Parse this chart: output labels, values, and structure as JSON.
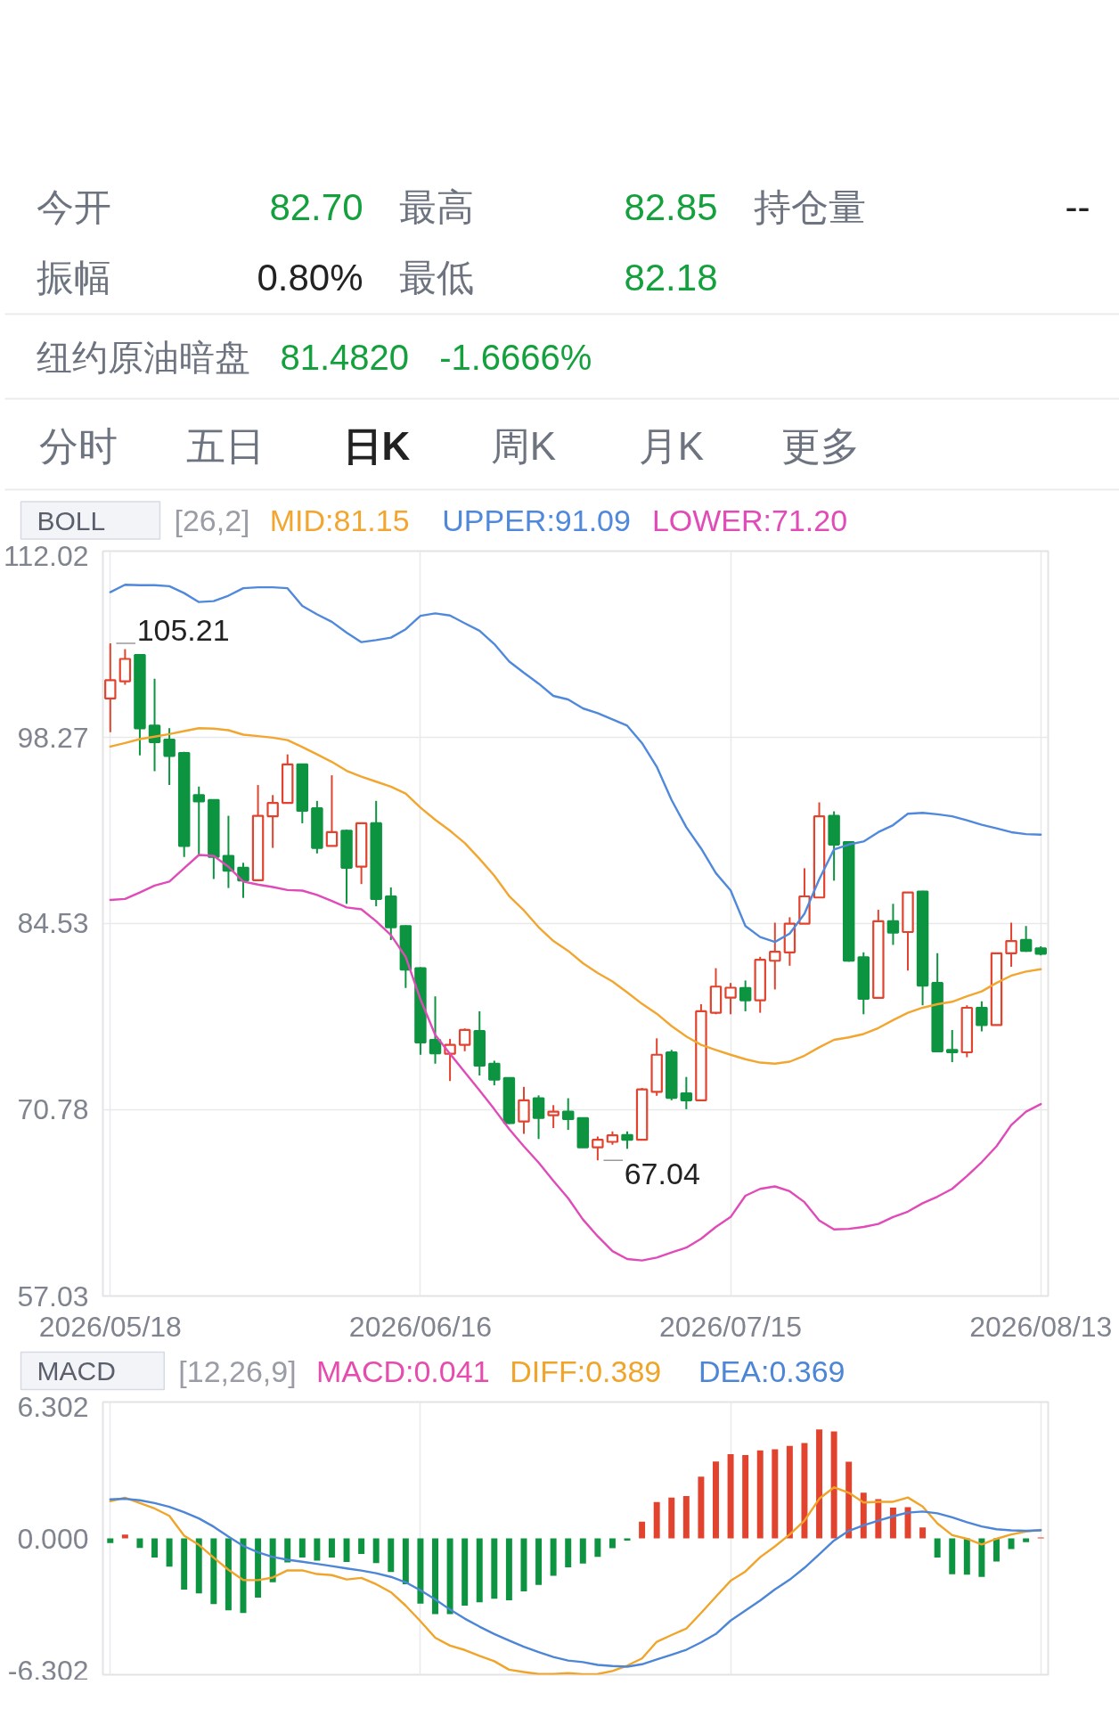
{
  "chart_data": [
    {
      "type": "other",
      "annotations": [
        "今开",
        "82.70",
        "最高",
        "82.85",
        "持仓量",
        "--",
        "振幅",
        "0.80%",
        "最低",
        "82.18",
        "纽约原油暗盘",
        "81.4820",
        "-1.6666%",
        "分时",
        "五日",
        "日K",
        "周K",
        "月K",
        "更多"
      ]
    },
    {
      "type": "candlestick",
      "title": "BOLL",
      "legend_title": "[26,2]",
      "legend": "top left",
      "categories": [
        "2026/05/18",
        null,
        null,
        null,
        null,
        null,
        null,
        null,
        null,
        null,
        null,
        null,
        null,
        null,
        null,
        null,
        null,
        null,
        null,
        null,
        null,
        "2026/06/16",
        null,
        null,
        null,
        null,
        null,
        null,
        null,
        null,
        null,
        null,
        null,
        null,
        null,
        null,
        null,
        null,
        null,
        null,
        null,
        null,
        "2026/07/15",
        null,
        null,
        null,
        null,
        null,
        null,
        null,
        null,
        null,
        null,
        null,
        null,
        null,
        null,
        null,
        null,
        null,
        null,
        null,
        null,
        "2026/08/13"
      ],
      "ohlc": [
        [
          101.14,
          105.21,
          98.65,
          102.49
        ],
        [
          102.41,
          104.79,
          102.16,
          104.06
        ],
        [
          104.35,
          104.42,
          96.94,
          98.94
        ],
        [
          99.13,
          102.6,
          95.77,
          97.92
        ],
        [
          98.1,
          98.94,
          94.75,
          96.9
        ],
        [
          97.12,
          97.2,
          89.45,
          90.25
        ],
        [
          94.01,
          94.64,
          89.63,
          93.54
        ],
        [
          93.65,
          93.7,
          87.81,
          89.45
        ],
        [
          89.52,
          92.48,
          87.15,
          88.43
        ],
        [
          88.65,
          89.01,
          86.42,
          87.7
        ],
        [
          87.73,
          94.75,
          87.73,
          92.48
        ],
        [
          92.44,
          94.01,
          90.11,
          93.43
        ],
        [
          93.43,
          97.01,
          93.43,
          96.28
        ],
        [
          96.28,
          96.3,
          91.93,
          92.85
        ],
        [
          93.03,
          93.58,
          89.7,
          90.11
        ],
        [
          90.25,
          95.47,
          90.25,
          91.27
        ],
        [
          91.38,
          91.46,
          85.98,
          88.65
        ],
        [
          88.72,
          91.93,
          87.44,
          91.93
        ],
        [
          91.93,
          93.58,
          85.8,
          86.34
        ],
        [
          86.53,
          87.19,
          83.31,
          84.26
        ],
        [
          84.34,
          84.4,
          79.77,
          81.12
        ],
        [
          81.23,
          81.3,
          74.84,
          75.75
        ],
        [
          75.93,
          79.15,
          74.18,
          74.95
        ],
        [
          74.91,
          76.01,
          72.9,
          75.57
        ],
        [
          75.57,
          76.78,
          75.1,
          76.67
        ],
        [
          76.59,
          78.05,
          73.31,
          74.04
        ],
        [
          74.18,
          74.4,
          72.58,
          73.01
        ],
        [
          73.12,
          73.15,
          69.73,
          69.8
        ],
        [
          69.91,
          72.47,
          69.0,
          71.48
        ],
        [
          71.63,
          71.84,
          68.63,
          70.17
        ],
        [
          70.38,
          71.12,
          69.43,
          70.64
        ],
        [
          70.64,
          71.63,
          69.29,
          70.09
        ],
        [
          70.17,
          70.2,
          67.98,
          68.01
        ],
        [
          68.01,
          68.81,
          67.04,
          68.56
        ],
        [
          68.41,
          69.18,
          68.19,
          68.89
        ],
        [
          68.92,
          69.18,
          67.9,
          68.56
        ],
        [
          68.56,
          72.39,
          68.56,
          72.28
        ],
        [
          72.1,
          76.05,
          71.81,
          74.84
        ],
        [
          75.02,
          75.2,
          71.48,
          71.66
        ],
        [
          71.99,
          73.2,
          70.82,
          71.48
        ],
        [
          71.48,
          78.57,
          71.48,
          78.05
        ],
        [
          77.94,
          81.23,
          77.83,
          79.87
        ],
        [
          79.06,
          80.14,
          77.83,
          79.79
        ],
        [
          79.77,
          80.32,
          78.05,
          78.86
        ],
        [
          78.86,
          82.07,
          77.94,
          81.85
        ],
        [
          81.78,
          84.59,
          79.66,
          82.44
        ],
        [
          82.4,
          84.99,
          81.41,
          84.52
        ],
        [
          84.52,
          88.61,
          84.52,
          86.53
        ],
        [
          86.45,
          93.47,
          86.45,
          92.44
        ],
        [
          92.48,
          92.81,
          87.69,
          90.36
        ],
        [
          90.54,
          90.6,
          81.71,
          81.78
        ],
        [
          82.04,
          82.4,
          77.83,
          78.97
        ],
        [
          79.04,
          85.54,
          79.04,
          84.7
        ],
        [
          84.7,
          85.98,
          82.95,
          83.86
        ],
        [
          83.9,
          86.82,
          81.05,
          86.82
        ],
        [
          86.89,
          86.95,
          78.49,
          79.95
        ],
        [
          80.14,
          82.33,
          75.1,
          75.1
        ],
        [
          75.2,
          76.67,
          74.29,
          75.02
        ],
        [
          75.02,
          78.49,
          74.66,
          78.31
        ],
        [
          78.31,
          78.78,
          76.56,
          77.03
        ],
        [
          77.03,
          82.33,
          77.03,
          82.33
        ],
        [
          82.33,
          84.59,
          81.34,
          83.24
        ],
        [
          83.31,
          84.34,
          82.44,
          82.51
        ],
        [
          82.7,
          82.85,
          82.18,
          82.3
        ]
      ],
      "colors": [
        "#e2432f",
        "#e2432f",
        "#0c9440",
        "#0c9440",
        "#0c9440",
        "#0c9440",
        "#0c9440",
        "#0c9440",
        "#0c9440",
        "#0c9440",
        "#e2432f",
        "#e2432f",
        "#e2432f",
        "#0c9440",
        "#0c9440",
        "#e2432f",
        "#0c9440",
        "#e2432f",
        "#0c9440",
        "#0c9440",
        "#0c9440",
        "#0c9440",
        "#0c9440",
        "#e2432f",
        "#e2432f",
        "#0c9440",
        "#0c9440",
        "#0c9440",
        "#e2432f",
        "#0c9440",
        "#e2432f",
        "#0c9440",
        "#0c9440",
        "#e2432f",
        "#e2432f",
        "#0c9440",
        "#e2432f",
        "#e2432f",
        "#0c9440",
        "#0c9440",
        "#e2432f",
        "#e2432f",
        "#e2432f",
        "#0c9440",
        "#e2432f",
        "#e2432f",
        "#e2432f",
        "#e2432f",
        "#e2432f",
        "#0c9440",
        "#0c9440",
        "#0c9440",
        "#e2432f",
        "#0c9440",
        "#e2432f",
        "#0c9440",
        "#0c9440",
        "#0c9440",
        "#e2432f",
        "#0c9440",
        "#e2432f",
        "#e2432f",
        "#0c9440",
        "#0c9440"
      ],
      "series": [
        {
          "type": "line",
          "name": "MID:81.15",
          "color": "#f2a630",
          "values": [
            97.59,
            97.85,
            98.14,
            98.32,
            98.51,
            98.73,
            98.95,
            98.91,
            98.8,
            98.47,
            98.36,
            98.25,
            98.07,
            97.56,
            97.01,
            96.46,
            95.8,
            95.37,
            95.0,
            94.63,
            94.12,
            93.08,
            92.19,
            91.38,
            90.47,
            89.3,
            88.06,
            86.56,
            85.5,
            84.26,
            83.24,
            82.51,
            81.6,
            80.87,
            80.25,
            79.44,
            78.6,
            77.87,
            76.96,
            76.19,
            75.57,
            75.2,
            74.84,
            74.51,
            74.26,
            74.18,
            74.33,
            74.77,
            75.39,
            75.94,
            76.12,
            76.37,
            76.81,
            77.4,
            77.94,
            78.31,
            78.57,
            78.75,
            79.15,
            79.52,
            80.14,
            80.68,
            80.98,
            81.15
          ]
        },
        {
          "type": "line",
          "name": "UPPER:91.09",
          "color": "#5089dc",
          "values": [
            108.99,
            109.54,
            109.5,
            109.5,
            109.43,
            108.92,
            108.26,
            108.33,
            108.73,
            109.28,
            109.35,
            109.35,
            109.28,
            107.97,
            107.35,
            106.8,
            106.0,
            105.3,
            105.45,
            105.63,
            106.25,
            107.24,
            107.42,
            107.27,
            106.69,
            106.14,
            105.16,
            103.88,
            103.04,
            102.24,
            101.33,
            101.07,
            100.41,
            100.05,
            99.6,
            99.13,
            97.85,
            96.1,
            93.65,
            91.64,
            90.07,
            88.25,
            86.97,
            84.34,
            83.53,
            83.17,
            83.79,
            85.25,
            87.8,
            90.0,
            90.36,
            90.58,
            91.27,
            91.79,
            92.63,
            92.7,
            92.59,
            92.44,
            92.15,
            91.82,
            91.56,
            91.27,
            91.13,
            91.09
          ]
        },
        {
          "type": "line",
          "name": "LOWER:71.20",
          "color": "#e04bb8",
          "values": [
            86.27,
            86.34,
            86.82,
            87.33,
            87.62,
            88.61,
            89.59,
            89.52,
            88.72,
            87.62,
            87.4,
            87.22,
            87.0,
            86.96,
            86.64,
            86.2,
            85.72,
            85.58,
            84.7,
            83.68,
            82.07,
            78.93,
            76.3,
            74.91,
            73.56,
            72.21,
            70.82,
            69.36,
            68.08,
            66.88,
            65.53,
            64.25,
            62.68,
            61.44,
            60.34,
            59.76,
            59.65,
            59.87,
            60.24,
            60.6,
            61.26,
            62.13,
            62.86,
            64.43,
            64.94,
            65.12,
            64.76,
            63.96,
            62.61,
            61.95,
            61.99,
            62.13,
            62.35,
            62.86,
            63.26,
            63.88,
            64.36,
            64.94,
            65.89,
            66.91,
            68.08,
            69.65,
            70.64,
            71.2
          ]
        }
      ],
      "ylim": [
        57.03,
        112.02
      ],
      "yticks": [
        57.03,
        70.78,
        84.53,
        98.27,
        112.02
      ],
      "grid": true,
      "annotations": [
        "105.21",
        "67.04"
      ]
    },
    {
      "type": "bar",
      "title": "MACD",
      "legend_title": "[12,26,9]",
      "legend": "top",
      "annotations": [
        "MACD:0.041"
      ],
      "categories": [
        "2026/05/18",
        null,
        null,
        null,
        null,
        null,
        null,
        null,
        null,
        null,
        null,
        null,
        null,
        null,
        null,
        null,
        null,
        null,
        null,
        null,
        null,
        "2026/06/16",
        null,
        null,
        null,
        null,
        null,
        null,
        null,
        null,
        null,
        null,
        null,
        null,
        null,
        null,
        null,
        null,
        null,
        null,
        null,
        null,
        "2026/07/15",
        null,
        null,
        null,
        null,
        null,
        null,
        null,
        null,
        null,
        null,
        null,
        null,
        null,
        null,
        null,
        null,
        null,
        null,
        null,
        null,
        "2026/08/13"
      ],
      "series": [
        {
          "type": "bar",
          "colors": [
            "#0c9440",
            "#e2432f",
            "#0c9440",
            "#0c9440",
            "#0c9440",
            "#0c9440",
            "#0c9440",
            "#0c9440",
            "#0c9440",
            "#0c9440",
            "#0c9440",
            "#0c9440",
            "#0c9440",
            "#0c9440",
            "#0c9440",
            "#0c9440",
            "#0c9440",
            "#0c9440",
            "#0c9440",
            "#0c9440",
            "#0c9440",
            "#0c9440",
            "#0c9440",
            "#0c9440",
            "#0c9440",
            "#0c9440",
            "#0c9440",
            "#0c9440",
            "#0c9440",
            "#0c9440",
            "#0c9440",
            "#0c9440",
            "#0c9440",
            "#0c9440",
            "#0c9440",
            "#0c9440",
            "#e2432f",
            "#e2432f",
            "#e2432f",
            "#e2432f",
            "#e2432f",
            "#e2432f",
            "#e2432f",
            "#e2432f",
            "#e2432f",
            "#e2432f",
            "#e2432f",
            "#e2432f",
            "#e2432f",
            "#e2432f",
            "#e2432f",
            "#e2432f",
            "#e2432f",
            "#e2432f",
            "#e2432f",
            "#e2432f",
            "#0c9440",
            "#0c9440",
            "#0c9440",
            "#0c9440",
            "#0c9440",
            "#0c9440",
            "#0c9440",
            "#e2432f"
          ],
          "values": [
            -0.22,
            0.18,
            -0.44,
            -0.89,
            -1.31,
            -2.37,
            -2.54,
            -3.04,
            -3.33,
            -3.45,
            -2.74,
            -2.03,
            -1.11,
            -0.89,
            -1.03,
            -0.89,
            -1.09,
            -0.72,
            -1.14,
            -1.56,
            -2.12,
            -3.02,
            -3.5,
            -3.5,
            -3.11,
            -2.96,
            -2.79,
            -2.86,
            -2.45,
            -2.15,
            -1.73,
            -1.34,
            -1.16,
            -0.85,
            -0.45,
            -0.1,
            0.77,
            1.68,
            1.88,
            1.96,
            2.85,
            3.55,
            3.89,
            3.85,
            4.07,
            4.12,
            4.27,
            4.41,
            5.04,
            4.94,
            3.54,
            2.11,
            1.81,
            1.42,
            1.44,
            0.5,
            -0.89,
            -1.66,
            -1.68,
            -1.78,
            -1.07,
            -0.49,
            -0.18,
            0.04
          ]
        },
        {
          "type": "line",
          "name": "DIFF:0.389",
          "color": "#f0a52a",
          "values": [
            1.72,
            1.88,
            1.63,
            1.38,
            1.04,
            0.12,
            -0.3,
            -0.89,
            -1.45,
            -1.93,
            -1.93,
            -1.81,
            -1.48,
            -1.48,
            -1.65,
            -1.7,
            -1.9,
            -1.83,
            -2.12,
            -2.49,
            -3.11,
            -3.83,
            -4.59,
            -4.96,
            -5.16,
            -5.43,
            -5.68,
            -6.07,
            -6.18,
            -6.27,
            -6.27,
            -6.23,
            -6.28,
            -6.27,
            -6.13,
            -5.88,
            -5.55,
            -4.78,
            -4.47,
            -4.17,
            -3.45,
            -2.7,
            -1.96,
            -1.53,
            -0.87,
            -0.37,
            0.18,
            0.82,
            1.83,
            2.36,
            2.11,
            1.66,
            1.69,
            1.69,
            1.89,
            1.47,
            0.69,
            0.15,
            -0.02,
            -0.28,
            -0.02,
            0.18,
            0.32,
            0.39
          ]
        },
        {
          "type": "line",
          "name": "DEA:0.369",
          "color": "#4d86d6",
          "values": [
            1.8,
            1.83,
            1.76,
            1.63,
            1.46,
            1.21,
            0.92,
            0.54,
            0.08,
            -0.35,
            -0.64,
            -0.86,
            -0.99,
            -1.08,
            -1.18,
            -1.28,
            -1.39,
            -1.49,
            -1.61,
            -1.78,
            -2.03,
            -2.4,
            -2.82,
            -3.29,
            -3.71,
            -4.08,
            -4.42,
            -4.72,
            -5.01,
            -5.26,
            -5.48,
            -5.65,
            -5.72,
            -5.85,
            -5.9,
            -5.93,
            -5.82,
            -5.6,
            -5.38,
            -5.15,
            -4.81,
            -4.42,
            -3.8,
            -3.34,
            -2.87,
            -2.36,
            -1.91,
            -1.36,
            -0.74,
            -0.1,
            0.35,
            0.6,
            0.82,
            1.02,
            1.19,
            1.24,
            1.16,
            0.97,
            0.75,
            0.55,
            0.42,
            0.37,
            0.35,
            0.37
          ]
        }
      ],
      "ylim": [
        -6.302,
        6.302
      ],
      "yticks": [
        -6.302,
        {
          "value": 0,
          "label": "0.000"
        },
        6.302
      ],
      "grid": "x",
      "tick_labels": "y"
    }
  ]
}
